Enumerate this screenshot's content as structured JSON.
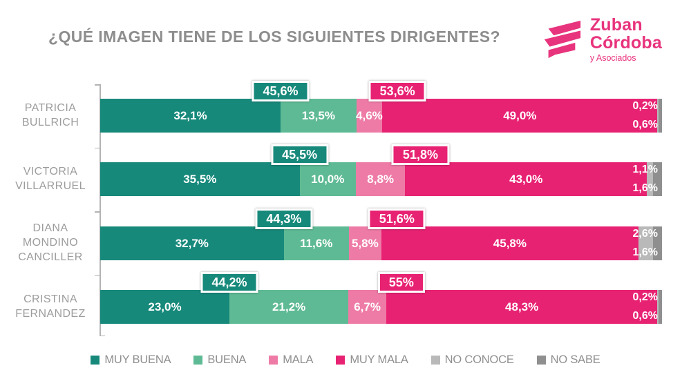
{
  "title": "¿QUÉ IMAGEN TIENE DE LOS SIGUIENTES DIRIGENTES?",
  "logo": {
    "name_line1": "Zuban",
    "name_line2": "Córdoba",
    "subtitle": "y Asociados",
    "brand_color": "#e8337d"
  },
  "colors": {
    "muy_buena": "#17897b",
    "buena": "#5eba94",
    "mala": "#ee7ba6",
    "muy_mala": "#e82273",
    "no_conoce": "#b9b9b9",
    "no_sabe": "#8f8f8f",
    "title_text": "#8d8d8d",
    "axis": "#b3b3b3"
  },
  "chart_data": {
    "type": "bar",
    "stacked": true,
    "orientation": "horizontal",
    "unit": "%",
    "xlim": [
      0,
      100
    ],
    "grid": false,
    "legend_position": "bottom",
    "title": "¿QUÉ IMAGEN TIENE DE LOS SIGUIENTES DIRIGENTES?",
    "categories": [
      [
        "PATRICIA",
        "BULLRICH"
      ],
      [
        "VICTORIA",
        "VILLARRUEL"
      ],
      [
        "DIANA",
        "MONDINO",
        "CANCILLER"
      ],
      [
        "CRISTINA",
        "FERNANDEZ"
      ]
    ],
    "series": [
      {
        "name": "MUY BUENA",
        "color": "#17897b",
        "values": [
          32.1,
          35.5,
          32.7,
          23.0
        ],
        "labels": [
          "32,1%",
          "35,5%",
          "32,7%",
          "23,0%"
        ]
      },
      {
        "name": "BUENA",
        "color": "#5eba94",
        "values": [
          13.5,
          10.0,
          11.6,
          21.2
        ],
        "labels": [
          "13,5%",
          "10,0%",
          "11,6%",
          "21,2%"
        ]
      },
      {
        "name": "MALA",
        "color": "#ee7ba6",
        "values": [
          4.6,
          8.8,
          5.8,
          6.7
        ],
        "labels": [
          "4,6%",
          "8,8%",
          "5,8%",
          "6,7%"
        ]
      },
      {
        "name": "MUY MALA",
        "color": "#e82273",
        "values": [
          49.0,
          43.0,
          45.8,
          48.3
        ],
        "labels": [
          "49,0%",
          "43,0%",
          "45,8%",
          "48,3%"
        ]
      },
      {
        "name": "NO CONOCE",
        "color": "#b9b9b9",
        "values": [
          0.2,
          1.1,
          2.6,
          0.2
        ],
        "labels": [
          "0,2%",
          "1,1%",
          "2,6%",
          "0,2%"
        ]
      },
      {
        "name": "NO SABE",
        "color": "#8f8f8f",
        "values": [
          0.6,
          1.6,
          1.6,
          0.6
        ],
        "labels": [
          "0,6%",
          "1,6%",
          "1,6%",
          "0,6%"
        ]
      }
    ],
    "callouts": {
      "positive_total": {
        "color": "#17897b",
        "labels": [
          "45,6%",
          "45,5%",
          "44,3%",
          "44,2%"
        ]
      },
      "negative_total": {
        "color": "#e82273",
        "labels": [
          "53,6%",
          "51,8%",
          "51,6%",
          "55%"
        ]
      }
    },
    "legend": [
      "MUY BUENA",
      "BUENA",
      "MALA",
      "MUY MALA",
      "NO CONOCE",
      "NO SABE"
    ]
  }
}
